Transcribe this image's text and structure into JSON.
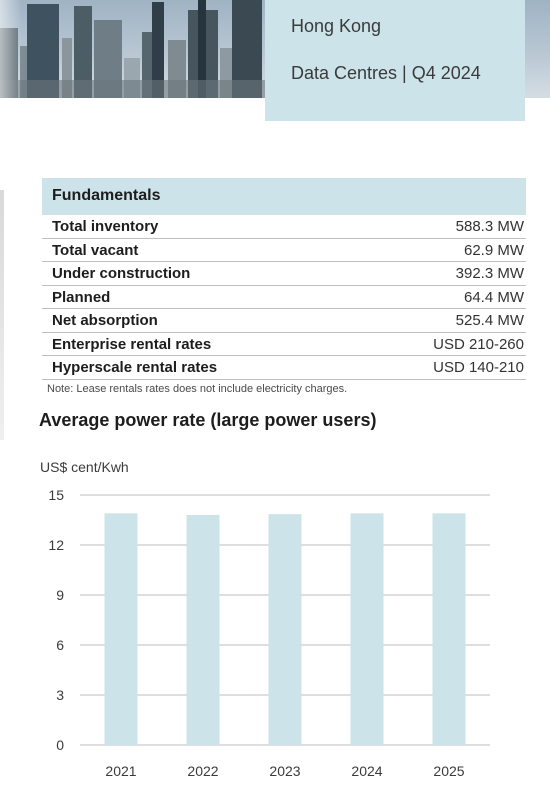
{
  "header": {
    "location": "Hong Kong",
    "subtitle": "Data Centres | Q4 2024"
  },
  "fundamentals": {
    "title": "Fundamentals",
    "rows": [
      {
        "label": "Total inventory",
        "value": "588.3 MW"
      },
      {
        "label": "Total vacant",
        "value": "62.9 MW"
      },
      {
        "label": "Under construction",
        "value": "392.3 MW"
      },
      {
        "label": "Planned",
        "value": "64.4 MW"
      },
      {
        "label": "Net absorption",
        "value": "525.4 MW"
      },
      {
        "label": "Enterprise rental rates",
        "value": "USD 210-260"
      },
      {
        "label": "Hyperscale rental rates",
        "value": "USD 140-210"
      }
    ],
    "note": "Note: Lease rentals rates does not include electricity charges."
  },
  "colors": {
    "accent": "#cce3e9",
    "bar": "#cce3e9",
    "grid": "#bdbdbd"
  },
  "chart_data": {
    "type": "bar",
    "title": "Average power rate (large power users)",
    "ylabel": "US$ cent/Kwh",
    "xlabel": "",
    "categories": [
      "2021",
      "2022",
      "2023",
      "2024",
      "2025"
    ],
    "values": [
      13.9,
      13.8,
      13.85,
      13.9,
      13.9
    ],
    "ylim": [
      0,
      15
    ],
    "yticks": [
      0,
      3,
      6,
      9,
      12,
      15
    ],
    "grid": true,
    "legend": "none"
  }
}
